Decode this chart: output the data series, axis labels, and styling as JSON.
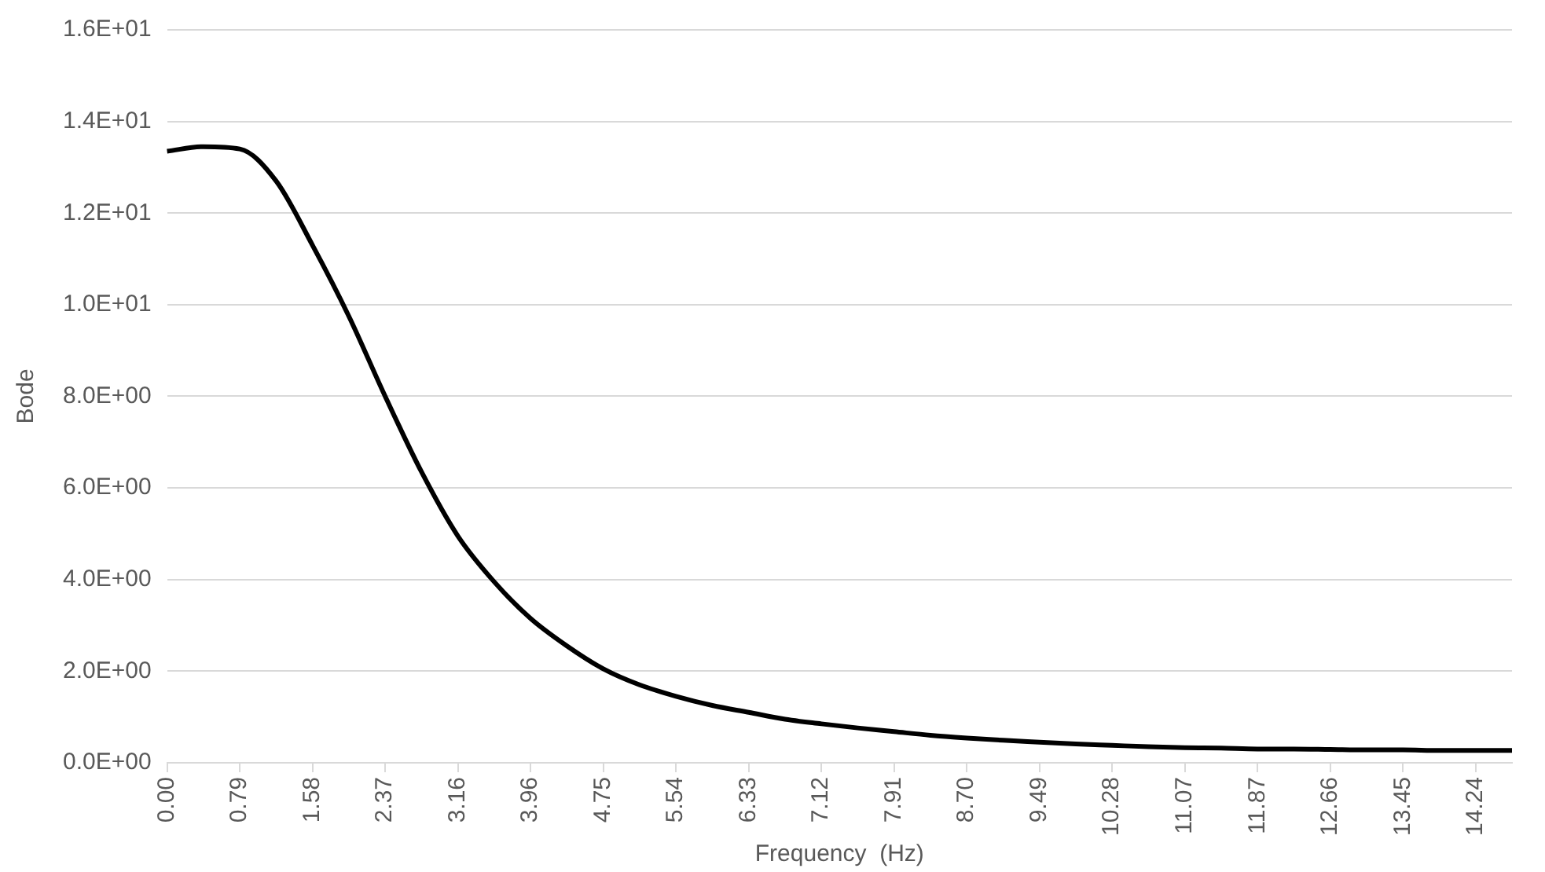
{
  "chart_data": {
    "type": "line",
    "xlabel": "Frequency  (Hz)",
    "ylabel": "Bode",
    "categories": [
      "0.00",
      null,
      "0.79",
      null,
      "1.58",
      null,
      "2.37",
      null,
      "3.16",
      null,
      "3.96",
      null,
      "4.75",
      null,
      "5.54",
      null,
      "6.33",
      null,
      "7.12",
      null,
      "7.91",
      null,
      "8.70",
      null,
      "9.49",
      null,
      "10.28",
      null,
      "11.07",
      null,
      "11.87",
      null,
      "12.66",
      null,
      "13.45",
      null,
      "14.24",
      null
    ],
    "series": [
      {
        "color": "#000000",
        "values": [
          13.35,
          13.45,
          13.4,
          12.7,
          11.3,
          9.75,
          8.0,
          6.35,
          4.95,
          3.95,
          3.15,
          2.55,
          2.05,
          1.7,
          1.45,
          1.25,
          1.1,
          0.95,
          0.85,
          0.76,
          0.68,
          0.6,
          0.54,
          0.49,
          0.45,
          0.41,
          0.38,
          0.35,
          0.33,
          0.32,
          0.3,
          0.3,
          0.29,
          0.28,
          0.28,
          0.27,
          0.27,
          0.27
        ]
      }
    ],
    "ylim": [
      0,
      16
    ],
    "yticks": [
      {
        "value": 0,
        "label": "0.0E+00"
      },
      {
        "value": 2,
        "label": "2.0E+00"
      },
      {
        "value": 4,
        "label": "4.0E+00"
      },
      {
        "value": 6,
        "label": "6.0E+00"
      },
      {
        "value": 8,
        "label": "8.0E+00"
      },
      {
        "value": 10,
        "label": "1.0E+01"
      },
      {
        "value": 12,
        "label": "1.2E+01"
      },
      {
        "value": 14,
        "label": "1.4E+01"
      },
      {
        "value": 16,
        "label": "1.6E+01"
      }
    ],
    "grid": "y",
    "legend": false,
    "marker": "none",
    "line_style": "solid"
  }
}
